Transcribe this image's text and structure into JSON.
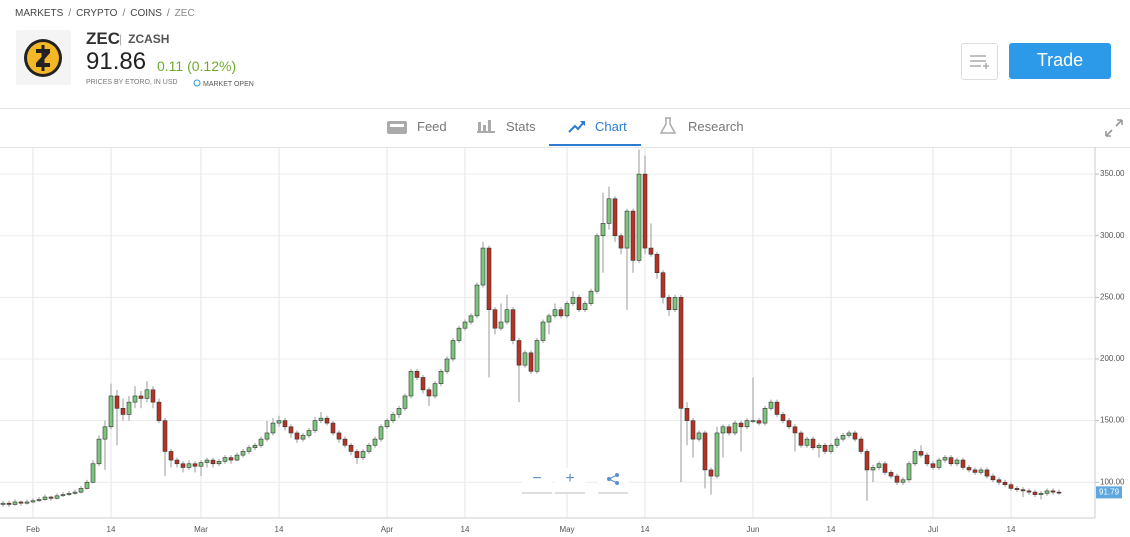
{
  "breadcrumb": [
    "MARKETS",
    "CRYPTO",
    "COINS",
    "ZEC"
  ],
  "instrument": {
    "symbol": "ZEC",
    "name": "ZCASH",
    "price": "91.86",
    "change": "0.11 (0.12%)",
    "source": "PRICES BY ETORO, IN USD",
    "status": "MARKET OPEN"
  },
  "trade_button": "Trade",
  "tabs": [
    "Feed",
    "Stats",
    "Chart",
    "Research"
  ],
  "chart_data": {
    "type": "candlestick",
    "up_color": "#7cc67c",
    "down_color": "#b83224",
    "ylim": [
      71,
      372
    ],
    "yticks": [
      {
        "value": 100,
        "label": "100.00"
      },
      {
        "value": 150,
        "label": "150.00"
      },
      {
        "value": 200,
        "label": "200.00"
      },
      {
        "value": 250,
        "label": "250.00"
      },
      {
        "value": 300,
        "label": "300.00"
      },
      {
        "value": 350,
        "label": "350.00"
      }
    ],
    "last_price": {
      "value": 91.79,
      "label": "91.79"
    },
    "grid": true,
    "categories": [
      null,
      null,
      null,
      null,
      null,
      "Feb",
      null,
      null,
      null,
      null,
      null,
      null,
      null,
      null,
      null,
      null,
      null,
      null,
      "14",
      null,
      null,
      null,
      null,
      null,
      null,
      null,
      null,
      null,
      null,
      null,
      null,
      null,
      null,
      "Mar",
      null,
      null,
      null,
      null,
      null,
      null,
      null,
      null,
      null,
      null,
      null,
      null,
      "14",
      null,
      null,
      null,
      null,
      null,
      null,
      null,
      null,
      null,
      null,
      null,
      null,
      null,
      null,
      null,
      null,
      null,
      "Apr",
      null,
      null,
      null,
      null,
      null,
      null,
      null,
      null,
      null,
      null,
      null,
      null,
      "14",
      null,
      null,
      null,
      null,
      null,
      null,
      null,
      null,
      null,
      null,
      null,
      null,
      null,
      null,
      null,
      null,
      "May",
      null,
      null,
      null,
      null,
      null,
      null,
      null,
      null,
      null,
      null,
      null,
      null,
      "14",
      null,
      null,
      null,
      null,
      null,
      null,
      null,
      null,
      null,
      null,
      null,
      null,
      null,
      null,
      null,
      null,
      null,
      "Jun",
      null,
      null,
      null,
      null,
      null,
      null,
      null,
      null,
      null,
      null,
      null,
      null,
      "14",
      null,
      null,
      null,
      null,
      null,
      null,
      null,
      null,
      null,
      null,
      null,
      null,
      null,
      null,
      null,
      null,
      "Jul",
      null,
      null,
      null,
      null,
      null,
      null,
      null,
      null,
      null,
      null,
      null,
      null,
      "14",
      null,
      null,
      null,
      null,
      null,
      null,
      null,
      null
    ],
    "candles": [
      [
        82,
        85,
        80,
        83
      ],
      [
        83,
        85,
        80,
        82
      ],
      [
        82,
        86,
        81,
        84
      ],
      [
        84,
        85,
        81,
        83
      ],
      [
        83,
        86,
        82,
        84
      ],
      [
        84,
        87,
        83,
        85
      ],
      [
        85,
        88,
        84,
        86
      ],
      [
        86,
        90,
        85,
        88
      ],
      [
        88,
        89,
        85,
        87
      ],
      [
        87,
        91,
        86,
        89
      ],
      [
        90,
        92,
        88,
        90
      ],
      [
        90,
        93,
        89,
        91
      ],
      [
        91,
        94,
        90,
        92
      ],
      [
        92,
        97,
        91,
        95
      ],
      [
        95,
        102,
        94,
        100
      ],
      [
        100,
        118,
        99,
        115
      ],
      [
        115,
        138,
        113,
        135
      ],
      [
        135,
        150,
        110,
        145
      ],
      [
        145,
        180,
        143,
        170
      ],
      [
        170,
        175,
        130,
        160
      ],
      [
        160,
        168,
        150,
        155
      ],
      [
        155,
        170,
        150,
        165
      ],
      [
        165,
        178,
        160,
        170
      ],
      [
        170,
        174,
        160,
        168
      ],
      [
        168,
        182,
        165,
        175
      ],
      [
        175,
        178,
        160,
        165
      ],
      [
        165,
        168,
        148,
        150
      ],
      [
        150,
        152,
        105,
        125
      ],
      [
        125,
        127,
        112,
        118
      ],
      [
        118,
        120,
        112,
        115
      ],
      [
        115,
        117,
        108,
        112
      ],
      [
        112,
        118,
        110,
        115
      ],
      [
        115,
        117,
        108,
        113
      ],
      [
        113,
        118,
        105,
        116
      ],
      [
        116,
        120,
        112,
        118
      ],
      [
        118,
        120,
        112,
        115
      ],
      [
        115,
        119,
        113,
        117
      ],
      [
        117,
        122,
        115,
        120
      ],
      [
        120,
        122,
        115,
        118
      ],
      [
        118,
        124,
        117,
        122
      ],
      [
        122,
        127,
        120,
        125
      ],
      [
        125,
        130,
        123,
        128
      ],
      [
        128,
        132,
        126,
        130
      ],
      [
        130,
        137,
        128,
        135
      ],
      [
        135,
        150,
        133,
        140
      ],
      [
        140,
        152,
        138,
        148
      ],
      [
        148,
        154,
        145,
        150
      ],
      [
        150,
        152,
        142,
        145
      ],
      [
        145,
        147,
        136,
        140
      ],
      [
        140,
        142,
        132,
        135
      ],
      [
        135,
        140,
        133,
        138
      ],
      [
        138,
        144,
        136,
        142
      ],
      [
        142,
        153,
        140,
        150
      ],
      [
        150,
        157,
        148,
        152
      ],
      [
        152,
        154,
        146,
        148
      ],
      [
        148,
        150,
        138,
        140
      ],
      [
        140,
        142,
        132,
        135
      ],
      [
        135,
        137,
        128,
        130
      ],
      [
        130,
        132,
        122,
        125
      ],
      [
        125,
        127,
        115,
        120
      ],
      [
        120,
        127,
        118,
        125
      ],
      [
        125,
        132,
        123,
        130
      ],
      [
        130,
        137,
        128,
        135
      ],
      [
        135,
        147,
        133,
        145
      ],
      [
        145,
        152,
        143,
        150
      ],
      [
        150,
        157,
        148,
        155
      ],
      [
        155,
        162,
        152,
        160
      ],
      [
        160,
        172,
        158,
        170
      ],
      [
        170,
        192,
        168,
        190
      ],
      [
        190,
        192,
        183,
        185
      ],
      [
        185,
        187,
        172,
        175
      ],
      [
        175,
        177,
        162,
        170
      ],
      [
        170,
        182,
        168,
        180
      ],
      [
        180,
        192,
        178,
        190
      ],
      [
        190,
        202,
        188,
        200
      ],
      [
        200,
        217,
        198,
        215
      ],
      [
        215,
        227,
        213,
        225
      ],
      [
        225,
        232,
        223,
        230
      ],
      [
        230,
        237,
        228,
        235
      ],
      [
        235,
        262,
        233,
        260
      ],
      [
        260,
        295,
        258,
        290
      ],
      [
        290,
        292,
        185,
        240
      ],
      [
        240,
        242,
        220,
        225
      ],
      [
        225,
        245,
        223,
        230
      ],
      [
        230,
        252,
        228,
        240
      ],
      [
        240,
        242,
        212,
        215
      ],
      [
        215,
        217,
        165,
        195
      ],
      [
        195,
        207,
        193,
        205
      ],
      [
        205,
        207,
        188,
        190
      ],
      [
        190,
        217,
        188,
        215
      ],
      [
        215,
        232,
        213,
        230
      ],
      [
        230,
        237,
        220,
        235
      ],
      [
        235,
        245,
        233,
        240
      ],
      [
        240,
        242,
        233,
        235
      ],
      [
        235,
        247,
        233,
        245
      ],
      [
        245,
        255,
        243,
        250
      ],
      [
        250,
        252,
        238,
        240
      ],
      [
        240,
        247,
        238,
        245
      ],
      [
        245,
        257,
        243,
        255
      ],
      [
        255,
        302,
        253,
        300
      ],
      [
        300,
        335,
        270,
        310
      ],
      [
        310,
        340,
        305,
        330
      ],
      [
        330,
        332,
        295,
        300
      ],
      [
        300,
        302,
        285,
        290
      ],
      [
        290,
        322,
        240,
        320
      ],
      [
        320,
        322,
        270,
        280
      ],
      [
        280,
        370,
        278,
        350
      ],
      [
        350,
        365,
        285,
        290
      ],
      [
        290,
        310,
        283,
        285
      ],
      [
        285,
        287,
        265,
        270
      ],
      [
        270,
        272,
        245,
        250
      ],
      [
        250,
        252,
        235,
        240
      ],
      [
        240,
        252,
        238,
        250
      ],
      [
        250,
        252,
        100,
        160
      ],
      [
        160,
        165,
        130,
        150
      ],
      [
        150,
        152,
        120,
        135
      ],
      [
        135,
        142,
        133,
        140
      ],
      [
        140,
        142,
        95,
        110
      ],
      [
        110,
        112,
        90,
        105
      ],
      [
        105,
        145,
        103,
        140
      ],
      [
        140,
        147,
        120,
        145
      ],
      [
        145,
        147,
        138,
        140
      ],
      [
        140,
        150,
        138,
        148
      ],
      [
        148,
        150,
        125,
        145
      ],
      [
        145,
        152,
        143,
        150
      ],
      [
        150,
        185,
        148,
        150
      ],
      [
        150,
        152,
        146,
        148
      ],
      [
        148,
        162,
        146,
        160
      ],
      [
        160,
        167,
        158,
        165
      ],
      [
        165,
        167,
        153,
        155
      ],
      [
        155,
        157,
        148,
        150
      ],
      [
        150,
        152,
        143,
        145
      ],
      [
        145,
        147,
        125,
        140
      ],
      [
        140,
        142,
        128,
        130
      ],
      [
        130,
        137,
        128,
        135
      ],
      [
        135,
        137,
        126,
        128
      ],
      [
        128,
        132,
        120,
        130
      ],
      [
        130,
        132,
        123,
        125
      ],
      [
        125,
        132,
        123,
        130
      ],
      [
        130,
        137,
        128,
        135
      ],
      [
        135,
        140,
        133,
        138
      ],
      [
        138,
        142,
        136,
        140
      ],
      [
        140,
        142,
        133,
        135
      ],
      [
        135,
        137,
        123,
        125
      ],
      [
        125,
        127,
        85,
        110
      ],
      [
        110,
        114,
        100,
        112
      ],
      [
        112,
        117,
        110,
        115
      ],
      [
        115,
        117,
        106,
        108
      ],
      [
        108,
        110,
        103,
        105
      ],
      [
        105,
        107,
        98,
        100
      ],
      [
        100,
        104,
        98,
        102
      ],
      [
        102,
        117,
        100,
        115
      ],
      [
        115,
        127,
        113,
        125
      ],
      [
        125,
        130,
        120,
        122
      ],
      [
        122,
        124,
        113,
        115
      ],
      [
        115,
        117,
        110,
        112
      ],
      [
        112,
        120,
        110,
        118
      ],
      [
        118,
        122,
        116,
        120
      ],
      [
        120,
        122,
        113,
        115
      ],
      [
        115,
        120,
        113,
        118
      ],
      [
        118,
        120,
        110,
        112
      ],
      [
        112,
        114,
        108,
        110
      ],
      [
        110,
        112,
        106,
        108
      ],
      [
        108,
        112,
        106,
        110
      ],
      [
        110,
        112,
        103,
        105
      ],
      [
        105,
        107,
        100,
        102
      ],
      [
        102,
        104,
        98,
        100
      ],
      [
        100,
        102,
        96,
        98
      ],
      [
        98,
        100,
        93,
        95
      ],
      [
        95,
        97,
        92,
        94
      ],
      [
        94,
        96,
        88,
        93
      ],
      [
        93,
        95,
        90,
        92
      ],
      [
        92,
        94,
        88,
        90
      ],
      [
        90,
        93,
        86,
        91
      ],
      [
        91,
        95,
        89,
        93
      ],
      [
        93,
        95,
        90,
        92
      ],
      [
        92,
        94,
        90,
        91.79
      ]
    ]
  }
}
